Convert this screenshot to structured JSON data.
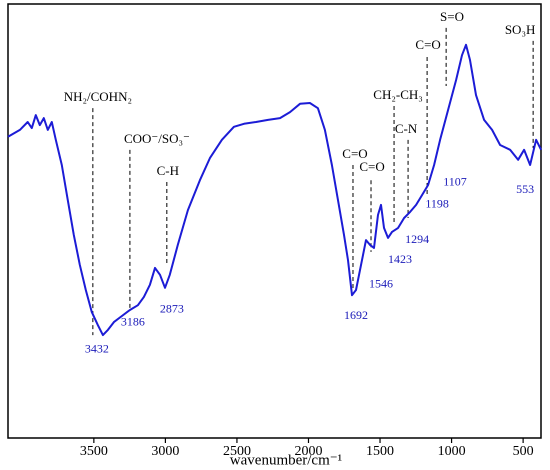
{
  "chart_data": {
    "type": "line",
    "x_label": "wavenumber/cm⁻¹",
    "xlim": [
      4100,
      375
    ],
    "ylim": [
      0,
      100
    ],
    "xticks": [
      3500,
      3000,
      2500,
      2000,
      1500,
      1000,
      500
    ],
    "color": "#1c1cd6",
    "x": [
      4100,
      4017,
      3962,
      3934,
      3906,
      3878,
      3850,
      3822,
      3794,
      3766,
      3724,
      3682,
      3640,
      3598,
      3556,
      3514,
      3472,
      3437,
      3402,
      3360,
      3304,
      3248,
      3192,
      3150,
      3108,
      3073,
      3038,
      3003,
      2969,
      2913,
      2843,
      2759,
      2689,
      2605,
      2521,
      2451,
      2367,
      2283,
      2199,
      2129,
      2059,
      1990,
      1934,
      1885,
      1836,
      1794,
      1752,
      1724,
      1696,
      1668,
      1626,
      1598,
      1570,
      1542,
      1514,
      1493,
      1472,
      1444,
      1416,
      1374,
      1332,
      1290,
      1248,
      1206,
      1164,
      1122,
      1080,
      1024,
      968,
      927,
      899,
      871,
      829,
      773,
      717,
      661,
      591,
      535,
      493,
      451,
      409,
      374
    ],
    "values": [
      69.4,
      71.0,
      72.8,
      71.4,
      74.4,
      72.1,
      73.7,
      71.0,
      72.8,
      68.7,
      62.9,
      54.8,
      46.8,
      39.9,
      34.1,
      29.0,
      26.0,
      23.7,
      24.9,
      26.7,
      28.1,
      29.5,
      30.6,
      32.5,
      35.3,
      39.2,
      37.6,
      34.6,
      37.6,
      44.5,
      52.5,
      59.4,
      64.5,
      68.7,
      71.7,
      72.4,
      72.8,
      73.3,
      73.7,
      75.1,
      77.0,
      77.2,
      76.0,
      71.0,
      62.9,
      54.8,
      46.8,
      41.0,
      32.9,
      34.1,
      41.0,
      45.6,
      44.5,
      43.8,
      51.4,
      53.7,
      48.4,
      46.1,
      47.5,
      48.4,
      50.7,
      52.1,
      53.7,
      56.0,
      58.3,
      62.9,
      68.7,
      75.6,
      82.5,
      88.2,
      90.6,
      87.1,
      79.0,
      73.3,
      71.0,
      67.5,
      66.4,
      64.1,
      66.4,
      62.9,
      68.7,
      66.4
    ],
    "markers": [
      {
        "x": 3507,
        "y1": 76.0,
        "y2": 23.7
      },
      {
        "x": 3248,
        "y1": 66.4,
        "y2": 29.5
      },
      {
        "x": 2990,
        "y1": 59.0,
        "y2": 39.9
      },
      {
        "x": 1689,
        "y1": 62.9,
        "y2": 34.1
      },
      {
        "x": 1563,
        "y1": 59.4,
        "y2": 42.9
      },
      {
        "x": 1402,
        "y1": 76.5,
        "y2": 49.1
      },
      {
        "x": 1304,
        "y1": 68.7,
        "y2": 50.7
      },
      {
        "x": 1171,
        "y1": 87.8,
        "y2": 56.0
      },
      {
        "x": 1038,
        "y1": 94.5,
        "y2": 81.1
      },
      {
        "x": 430,
        "y1": 91.5,
        "y2": 66.8
      }
    ],
    "annotations": [
      {
        "text": "NH₂/COHN₂",
        "x": 3472,
        "y": 78.3
      },
      {
        "text": "COO⁻/SO₃⁻",
        "x": 3059,
        "y": 68.7
      },
      {
        "text": "C-H",
        "x": 2983,
        "y": 61.3
      },
      {
        "text": "C=O",
        "x": 1675,
        "y": 65.2
      },
      {
        "text": "C=O",
        "x": 1556,
        "y": 62.2
      },
      {
        "text": "CH₂-CH₃",
        "x": 1374,
        "y": 78.8
      },
      {
        "text": "C-N",
        "x": 1318,
        "y": 71.0
      },
      {
        "text": "C=O",
        "x": 1164,
        "y": 90.3
      },
      {
        "text": "S=O",
        "x": 997,
        "y": 96.8
      },
      {
        "text": "SO₃H",
        "x": 521,
        "y": 93.8
      }
    ],
    "peak_labels": [
      {
        "text": "3432",
        "x": 3479,
        "y": 20.3
      },
      {
        "text": "3186",
        "x": 3227,
        "y": 26.5
      },
      {
        "text": "2873",
        "x": 2955,
        "y": 29.5
      },
      {
        "text": "1692",
        "x": 1668,
        "y": 28.1
      },
      {
        "text": "1546",
        "x": 1493,
        "y": 35.3
      },
      {
        "text": "1423",
        "x": 1360,
        "y": 41.0
      },
      {
        "text": "1294",
        "x": 1241,
        "y": 45.6
      },
      {
        "text": "1198",
        "x": 1101,
        "y": 53.7
      },
      {
        "text": "1107",
        "x": 976,
        "y": 58.8
      },
      {
        "text": "553",
        "x": 486,
        "y": 57.1
      }
    ]
  }
}
